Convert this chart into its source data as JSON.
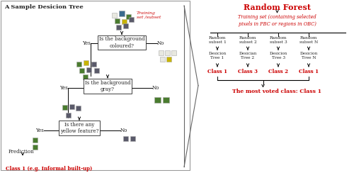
{
  "bg_color": "#ffffff",
  "left_panel_title": "A Sample Desicion Tree",
  "right_panel_title": "Random Forest",
  "training_set_label": "Training\nset /subset",
  "training_set_full": "Training set (containing selected\npixels in PBC or regions in OBC)",
  "random_subsets": [
    "Random\nsubset 1",
    "Random\nsubset 2",
    "Random\nsubset 3",
    "Random\nsubset N"
  ],
  "decision_trees": [
    "Desicion\nTree 1",
    "Desician\nTree 2",
    "Desicion\nTree 3",
    "Desicion\nTree N"
  ],
  "classes": [
    "Class 1",
    "Class 3",
    "Class 2",
    "Class 1"
  ],
  "most_voted": "The most voted class: Class 1",
  "prediction_label": "Prediction",
  "prediction_class": "Class 1 (e.g. Informal built-up)",
  "q1": "Is the background\ncoloured?",
  "q2": "Is the background\ngray?",
  "q3": "Is there any\nyellow feature?",
  "red_color": "#cc0000",
  "black_color": "#222222",
  "green_color": "#4a7c2f",
  "gray_sq": "#5a5a6a",
  "olive_color": "#c8b400",
  "white_sq": "#e8e8e0",
  "blue_sq": "#3a6a8f"
}
